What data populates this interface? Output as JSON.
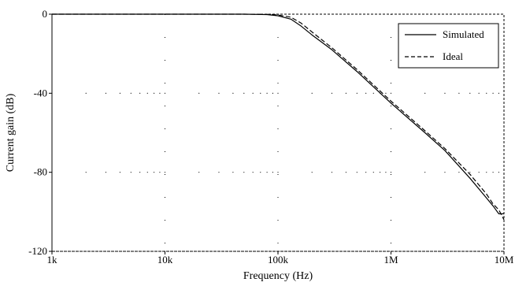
{
  "chart_data": {
    "type": "line",
    "title": "",
    "xlabel": "Frequency (Hz)",
    "ylabel": "Current gain (dB)",
    "x_scale": "log",
    "xlim": [
      1000,
      10000000
    ],
    "ylim": [
      -120,
      0
    ],
    "x_ticks": [
      1000,
      10000,
      100000,
      1000000,
      10000000
    ],
    "x_tick_labels": [
      "1k",
      "10k",
      "100k",
      "1M",
      "10M"
    ],
    "y_ticks": [
      0,
      -40,
      -80,
      -120
    ],
    "y_tick_labels": [
      "0",
      "-40",
      "-80",
      "-120"
    ],
    "grid": "dotted",
    "legend_position": "top-right",
    "series": [
      {
        "name": "Simulated",
        "style": "solid",
        "color": "#000000",
        "points": [
          [
            1000,
            0
          ],
          [
            10000,
            0
          ],
          [
            50000,
            0
          ],
          [
            80000,
            -0.2
          ],
          [
            100000,
            -0.8
          ],
          [
            130000,
            -2.5
          ],
          [
            160000,
            -6
          ],
          [
            200000,
            -10.5
          ],
          [
            300000,
            -18
          ],
          [
            500000,
            -29
          ],
          [
            1000000,
            -45
          ],
          [
            2000000,
            -60
          ],
          [
            3000000,
            -69
          ],
          [
            5000000,
            -83
          ],
          [
            7000000,
            -93
          ],
          [
            8000000,
            -97
          ],
          [
            9000000,
            -101
          ],
          [
            10000000,
            -101
          ]
        ]
      },
      {
        "name": "Ideal",
        "style": "dashed",
        "color": "#000000",
        "points": [
          [
            1000,
            0
          ],
          [
            10000,
            0
          ],
          [
            50000,
            0
          ],
          [
            80000,
            -0.1
          ],
          [
            100000,
            -0.4
          ],
          [
            130000,
            -1.5
          ],
          [
            160000,
            -4.5
          ],
          [
            200000,
            -9
          ],
          [
            300000,
            -17
          ],
          [
            500000,
            -28
          ],
          [
            1000000,
            -44
          ],
          [
            2000000,
            -59
          ],
          [
            3000000,
            -68
          ],
          [
            5000000,
            -81
          ],
          [
            7000000,
            -91
          ],
          [
            8000000,
            -96
          ],
          [
            9000000,
            -99
          ],
          [
            10000000,
            -104
          ]
        ]
      }
    ]
  }
}
